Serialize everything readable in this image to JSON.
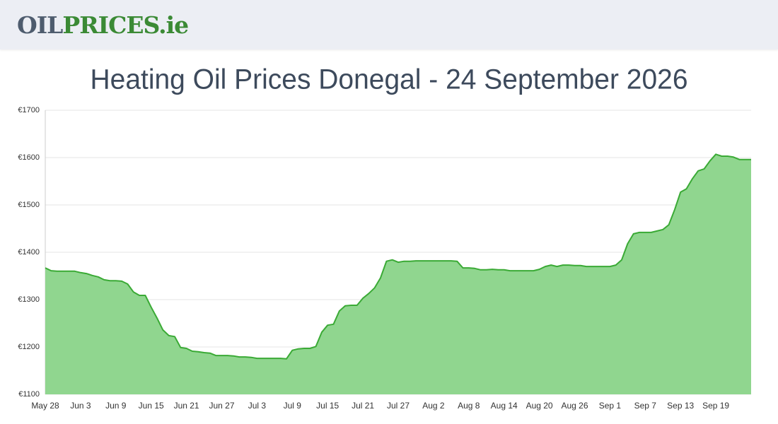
{
  "header": {
    "logo_oil": "OIL",
    "logo_prices": "PRICES",
    "logo_tld": ".ie"
  },
  "chart_data": {
    "type": "area",
    "title": "Heating Oil Prices Donegal - 24 September 2026",
    "categories": [
      "May 28",
      null,
      null,
      null,
      null,
      null,
      "Jun 3",
      null,
      null,
      null,
      null,
      null,
      "Jun 9",
      null,
      null,
      null,
      null,
      null,
      "Jun 15",
      null,
      null,
      null,
      null,
      null,
      "Jun 21",
      null,
      null,
      null,
      null,
      null,
      "Jun 27",
      null,
      null,
      null,
      null,
      null,
      "Jul 3",
      null,
      null,
      null,
      null,
      null,
      "Jul 9",
      null,
      null,
      null,
      null,
      null,
      "Jul 15",
      null,
      null,
      null,
      null,
      null,
      "Jul 21",
      null,
      null,
      null,
      null,
      null,
      "Jul 27",
      null,
      null,
      null,
      null,
      null,
      "Aug 2",
      null,
      null,
      null,
      null,
      null,
      "Aug 8",
      null,
      null,
      null,
      null,
      null,
      "Aug 14",
      null,
      null,
      null,
      null,
      null,
      "Aug 20",
      null,
      null,
      null,
      null,
      null,
      "Aug 26",
      null,
      null,
      null,
      null,
      null,
      "Sep 1",
      null,
      null,
      null,
      null,
      null,
      "Sep 7",
      null,
      null,
      null,
      null,
      null,
      "Sep 13",
      null,
      null,
      null,
      null,
      null,
      "Sep 19",
      null,
      null,
      null,
      null,
      null,
      null
    ],
    "values": [
      1367,
      1361,
      1360,
      1360,
      1360,
      1360,
      1357,
      1355,
      1351,
      1348,
      1342,
      1340,
      1340,
      1339,
      1333,
      1316,
      1309,
      1309,
      1284,
      1261,
      1236,
      1224,
      1222,
      1199,
      1197,
      1191,
      1190,
      1188,
      1187,
      1182,
      1182,
      1182,
      1181,
      1179,
      1179,
      1178,
      1176,
      1176,
      1176,
      1176,
      1176,
      1175,
      1193,
      1196,
      1197,
      1197,
      1201,
      1231,
      1246,
      1248,
      1276,
      1287,
      1288,
      1288,
      1303,
      1313,
      1325,
      1346,
      1381,
      1384,
      1379,
      1381,
      1381,
      1382,
      1382,
      1382,
      1382,
      1382,
      1382,
      1382,
      1381,
      1367,
      1367,
      1366,
      1363,
      1363,
      1364,
      1363,
      1363,
      1361,
      1361,
      1361,
      1361,
      1361,
      1364,
      1370,
      1373,
      1370,
      1373,
      1373,
      1372,
      1372,
      1370,
      1370,
      1370,
      1370,
      1370,
      1373,
      1384,
      1418,
      1439,
      1442,
      1442,
      1442,
      1445,
      1448,
      1458,
      1490,
      1527,
      1534,
      1555,
      1572,
      1576,
      1593,
      1607,
      1603,
      1603,
      1601,
      1596,
      1596,
      1596
    ],
    "color": "#3aaa35",
    "fill": "#90d68f",
    "ylim": [
      1100,
      1700
    ],
    "yticks": [
      {
        "value": 1100,
        "label": "€1100"
      },
      {
        "value": 1200,
        "label": "€1200"
      },
      {
        "value": 1300,
        "label": "€1300"
      },
      {
        "value": 1400,
        "label": "€1400"
      },
      {
        "value": 1500,
        "label": "€1500"
      },
      {
        "value": 1600,
        "label": "€1600"
      },
      {
        "value": 1700,
        "label": "€1700"
      }
    ],
    "grid": true
  }
}
